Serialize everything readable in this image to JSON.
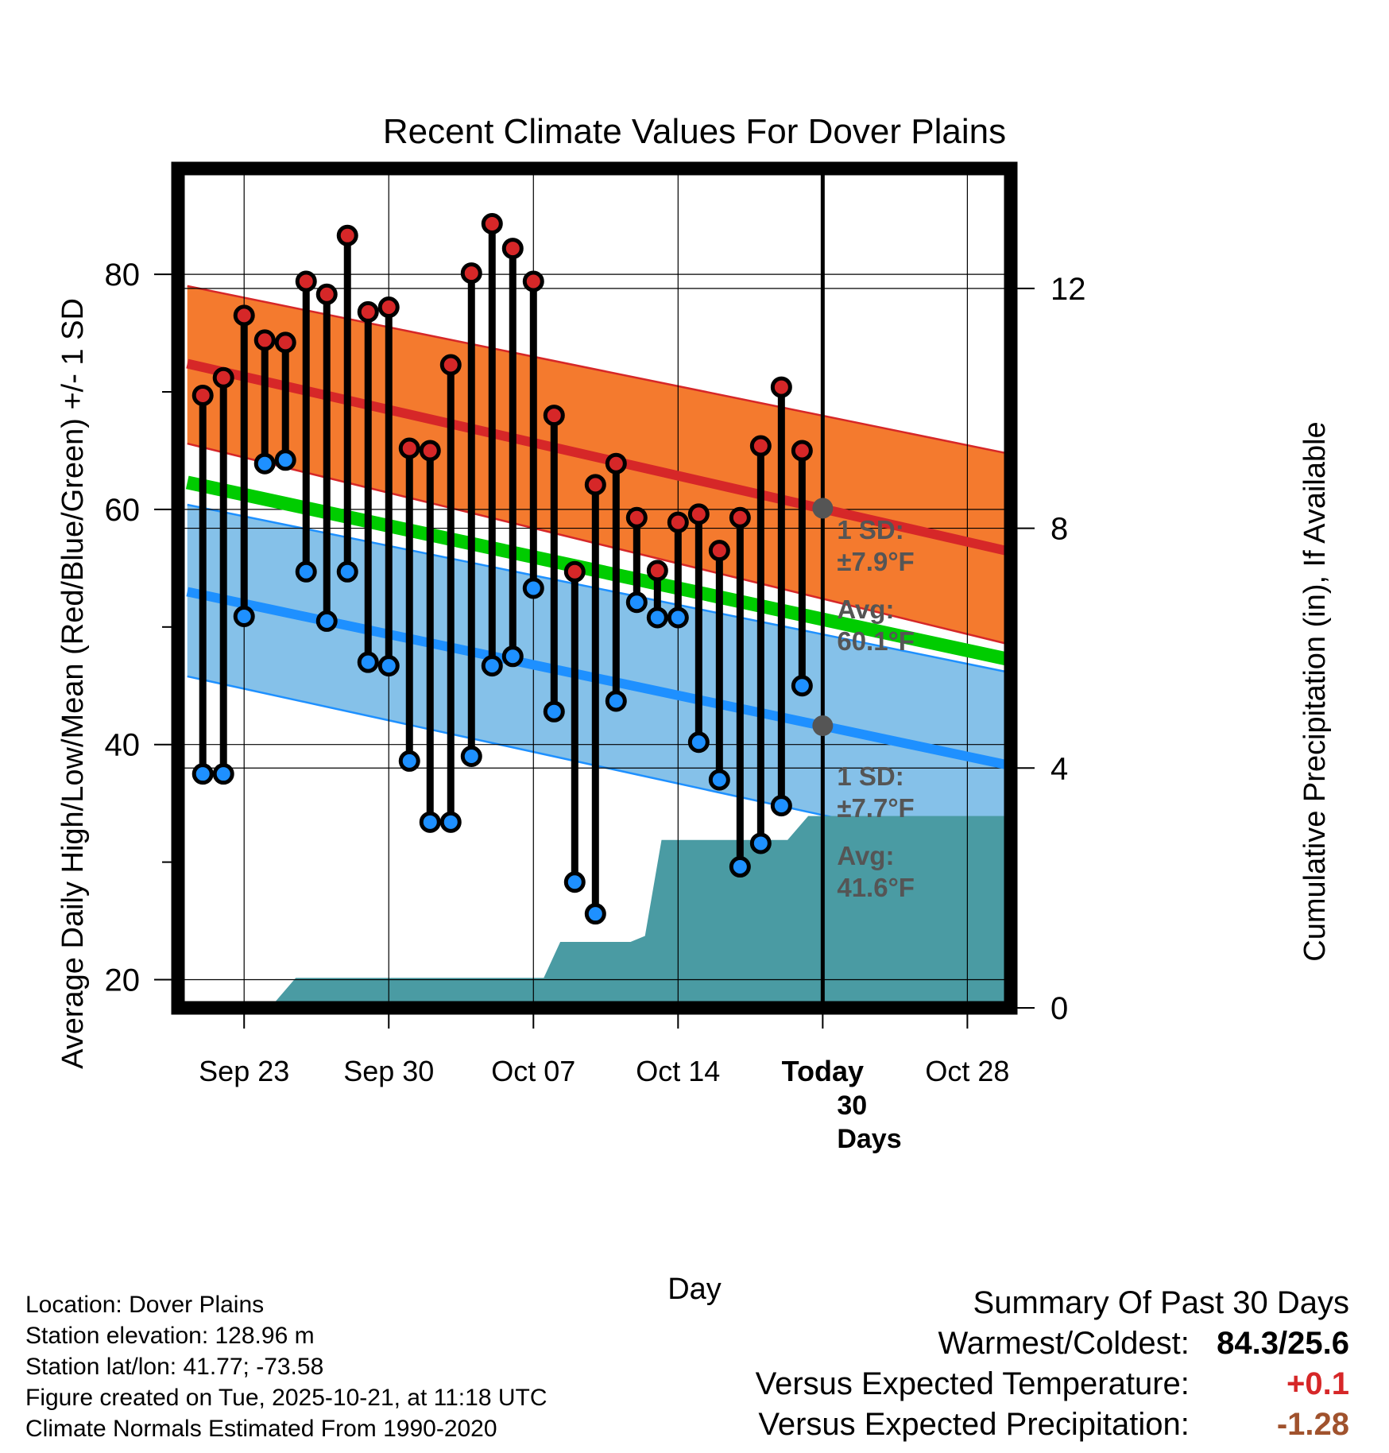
{
  "chart_data": {
    "type": "line",
    "title": "Recent Climate Values For Dover Plains",
    "xlabel": "Day",
    "ylabel": "Average Daily High/Low/Mean (Red/Blue/Green) +/- 1 SD",
    "ylabel_right": "Cumulative Precipitation (in), If Available",
    "ylim": [
      17.6,
      89
    ],
    "y_ticks": [
      20,
      40,
      60,
      80
    ],
    "y_minor_ticks": [
      30,
      50,
      70
    ],
    "y2lim": [
      0,
      14.0
    ],
    "y2_ticks": [
      0,
      4,
      8,
      12
    ],
    "xlim": [
      -3.2,
      37.1
    ],
    "x_ticks": [
      {
        "day": 0,
        "label": "Sep 23"
      },
      {
        "day": 7,
        "label": "Sep 30"
      },
      {
        "day": 14,
        "label": "Oct 07"
      },
      {
        "day": 21,
        "label": "Oct 14"
      },
      {
        "day": 28,
        "label": "Today"
      },
      {
        "day": 35,
        "label": "Oct 28"
      }
    ],
    "today_day": 28,
    "normals": {
      "x_range": [
        -2.75,
        36.85
      ],
      "high_avg": [
        72.4,
        56.5
      ],
      "high_upper": [
        79.0,
        64.8
      ],
      "high_lower": [
        65.6,
        48.6
      ],
      "mean_avg": [
        62.3,
        47.3
      ],
      "low_avg": [
        53.0,
        38.3
      ],
      "low_upper": [
        60.4,
        46.2
      ],
      "low_lower": [
        45.8,
        30.6
      ]
    },
    "series": [
      {
        "name": "Daily High",
        "start_day": -2,
        "values": [
          69.7,
          71.2,
          76.5,
          74.4,
          74.2,
          79.4,
          78.3,
          83.3,
          76.8,
          77.2,
          65.2,
          65.0,
          72.3,
          80.1,
          84.3,
          82.2,
          79.4,
          68.0,
          54.7,
          62.1,
          63.9,
          59.3,
          54.8,
          58.9,
          59.6,
          56.5,
          59.3,
          65.4,
          70.4,
          65.0
        ]
      },
      {
        "name": "Daily Low",
        "start_day": -2,
        "values": [
          37.5,
          37.5,
          50.9,
          63.9,
          64.2,
          54.7,
          50.5,
          54.7,
          47.0,
          46.7,
          38.6,
          33.4,
          33.4,
          39.0,
          46.7,
          47.5,
          53.3,
          42.8,
          28.3,
          25.6,
          43.7,
          52.1,
          50.8,
          50.8,
          40.2,
          37.0,
          29.6,
          31.6,
          34.8,
          45.0
        ]
      }
    ],
    "precip": {
      "name": "Cumulative Precipitation",
      "days": [
        -2.75,
        0.5,
        1.5,
        2.5,
        14.5,
        15.3,
        18.7,
        19.4,
        20.2,
        26.3,
        27.3,
        36.85
      ],
      "values": [
        0,
        0,
        0.1,
        0.5,
        0.5,
        1.1,
        1.1,
        1.2,
        2.8,
        2.8,
        3.2,
        3.2
      ]
    },
    "annotations": {
      "high_sd": [
        "1 SD:",
        "±7.9°F"
      ],
      "high_avg": [
        "Avg:",
        "60.1°F"
      ],
      "low_sd": [
        "1 SD:",
        "±7.7°F"
      ],
      "low_avg": [
        "Avg:",
        "41.6°F"
      ],
      "days": [
        "30",
        "Days"
      ]
    },
    "colors": {
      "high": "#d62728",
      "high_band": "#f47a2e",
      "low": "#1e90ff",
      "low_band": "#85c1e9",
      "mean": "#00cc00",
      "precip": "#4a9ba3",
      "annotation": "#555555",
      "today_marker": "#555555"
    }
  },
  "info": {
    "location": "Location: Dover Plains",
    "elevation": "Station elevation: 128.96 m",
    "latlon": "Station lat/lon: 41.77; -73.58",
    "created": "Figure created on Tue, 2025-10-21, at 11:18 UTC",
    "normals": "Climate Normals Estimated From 1990-2020"
  },
  "summary": {
    "title": "Summary Of Past 30 Days",
    "warmest_coldest_label": "Warmest/Coldest:",
    "warmest_coldest_value": "84.3/25.6",
    "temp_label": "Versus Expected Temperature:",
    "temp_value": "+0.1",
    "temp_color": "#d62728",
    "precip_label": "Versus Expected Precipitation:",
    "precip_value": "-1.28",
    "precip_color": "#a0522d"
  }
}
